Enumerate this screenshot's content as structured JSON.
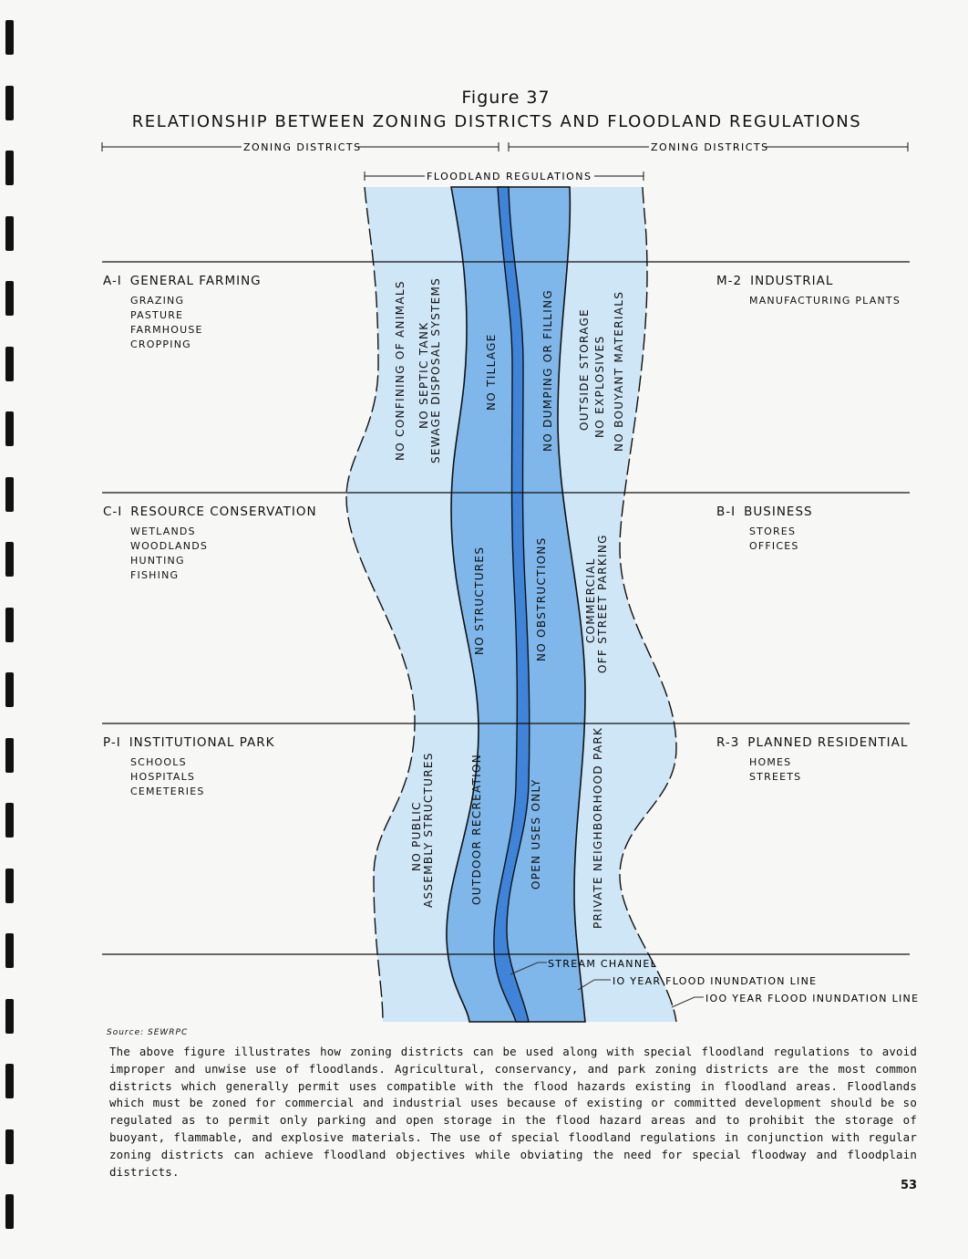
{
  "figure": {
    "number": "Figure 37",
    "title": "RELATIONSHIP BETWEEN ZONING DISTRICTS AND FLOODLAND REGULATIONS"
  },
  "dimensions": {
    "left": "ZONING DISTRICTS",
    "right": "ZONING DISTRICTS",
    "center": "FLOODLAND REGULATIONS"
  },
  "districts_left": [
    {
      "code": "A-I",
      "name": "GENERAL FARMING",
      "uses": [
        "GRAZING",
        "PASTURE",
        "FARMHOUSE",
        "CROPPING"
      ]
    },
    {
      "code": "C-I",
      "name": "RESOURCE CONSERVATION",
      "uses": [
        "WETLANDS",
        "WOODLANDS",
        "HUNTING",
        "FISHING"
      ]
    },
    {
      "code": "P-I",
      "name": "INSTITUTIONAL PARK",
      "uses": [
        "SCHOOLS",
        "HOSPITALS",
        "CEMETERIES"
      ]
    }
  ],
  "districts_right": [
    {
      "code": "M-2",
      "name": "INDUSTRIAL",
      "uses": [
        "MANUFACTURING PLANTS"
      ]
    },
    {
      "code": "B-I",
      "name": "BUSINESS",
      "uses": [
        "STORES",
        "OFFICES"
      ]
    },
    {
      "code": "R-3",
      "name": "PLANNED RESIDENTIAL",
      "uses": [
        "HOMES",
        "STREETS"
      ]
    }
  ],
  "regulations": [
    [
      "NO CONFINING OF ANIMALS",
      "NO SEPTIC TANK",
      "SEWAGE DISPOSAL SYSTEMS",
      "NO TILLAGE",
      "NO DUMPING OR FILLING",
      "OUTSIDE STORAGE",
      "NO EXPLOSIVES",
      "NO BOUYANT MATERIALS"
    ],
    [
      "NO STRUCTURES",
      "NO OBSTRUCTIONS",
      "COMMERCIAL",
      "OFF STREET PARKING"
    ],
    [
      "NO PUBLIC",
      "ASSEMBLY STRUCTURES",
      "OUTDOOR RECREATION",
      "OPEN USES ONLY",
      "PRIVATE NEIGHBORHOOD PARK"
    ]
  ],
  "legend": {
    "stream": "STREAM CHANNEL",
    "ten_year": "IO YEAR FLOOD INUNDATION LINE",
    "hundred_year": "IOO YEAR FLOOD INUNDATION LINE"
  },
  "colors": {
    "flood_100yr": "#cfe6f7",
    "flood_10yr": "#7fb7ea",
    "stream": "#3f84d8"
  },
  "source": "Source: SEWRPC",
  "body": "The above figure illustrates how zoning districts can be used along with special floodland regulations to avoid improper and unwise use of floodlands. Agricultural, conservancy, and park zoning districts are the most common districts which generally permit uses compatible with the flood hazards existing in floodland areas. Floodlands which must be zoned for commercial and industrial uses because of existing or committed development should be so regulated as to permit only parking and open storage in the flood hazard areas and to prohibit the storage of buoyant, flammable, and explosive materials. The use of special floodland regulations in conjunction with regular zoning districts can achieve floodland objectives while obviating the need for special floodway and floodplain districts.",
  "page_number": "53"
}
